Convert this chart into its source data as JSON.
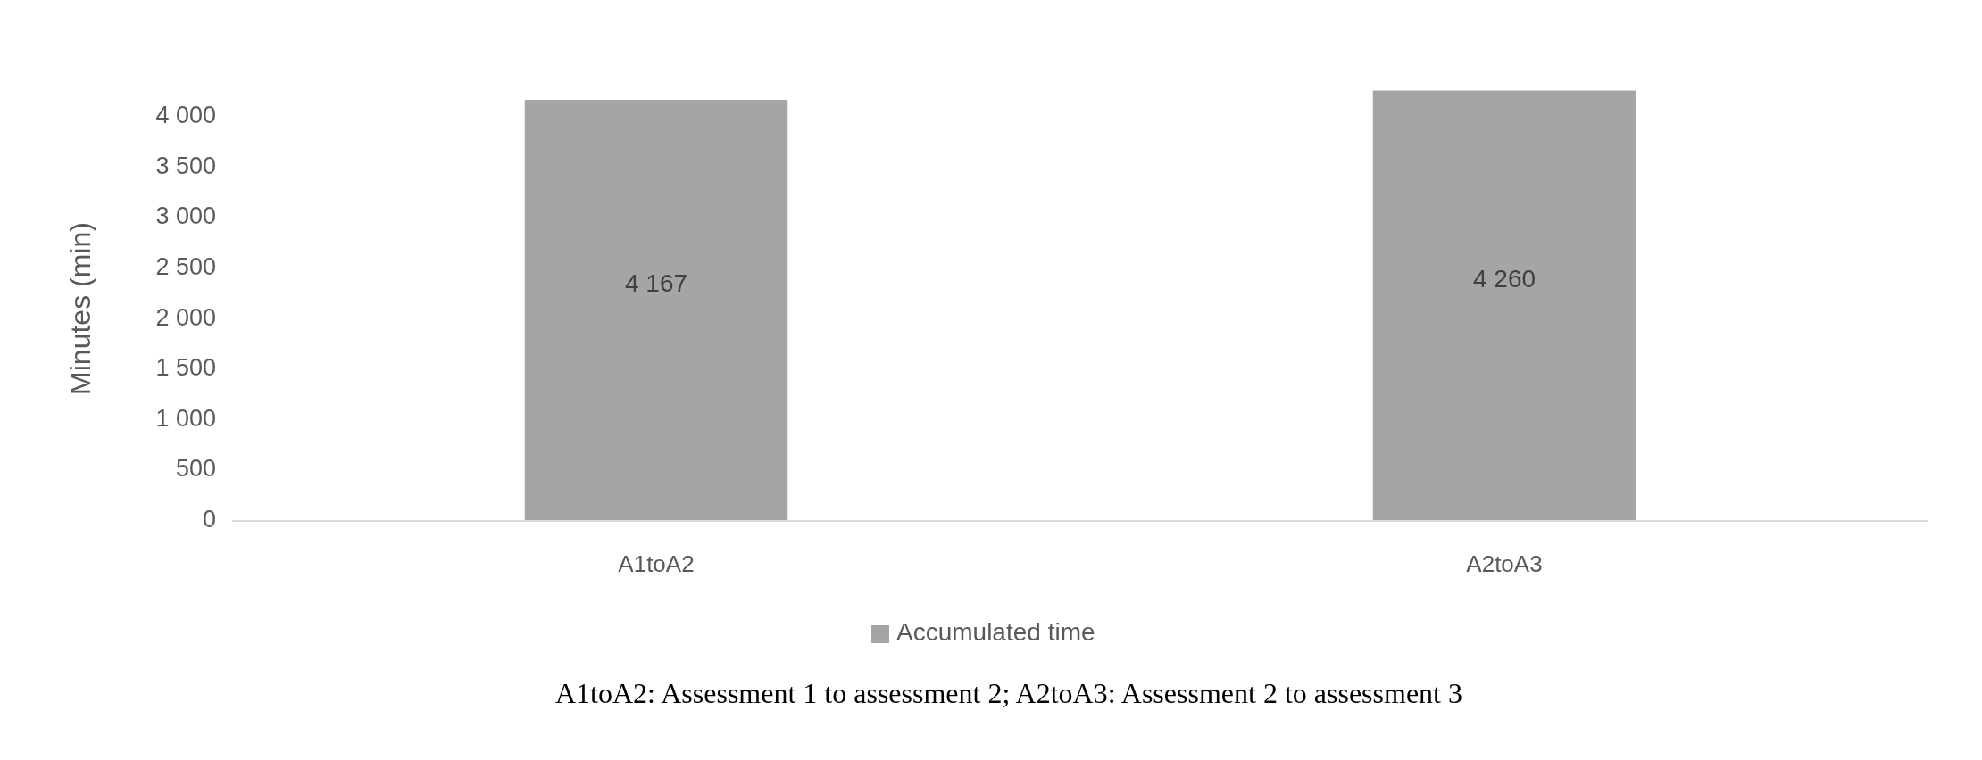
{
  "chart_data": {
    "type": "bar",
    "ylabel": "Minutes (min)",
    "categories": [
      "A1toA2",
      "A2toA3"
    ],
    "series": [
      {
        "name": "Accumulated time",
        "color": "#a5a5a5",
        "values": [
          4167,
          4260
        ]
      }
    ],
    "ylim": [
      0,
      4300
    ],
    "yticks": [
      0,
      500,
      {
        "value": 1000,
        "label": "1 000"
      },
      {
        "value": 1500,
        "label": "1 500"
      },
      {
        "value": 2000,
        "label": "2 000"
      },
      {
        "value": 2500,
        "label": "2 500"
      },
      {
        "value": 3000,
        "label": "3 000"
      },
      {
        "value": 3500,
        "label": "3 500"
      },
      {
        "value": 4000,
        "label": "4 000"
      }
    ],
    "value_labels": [
      "4 167",
      "4 260"
    ],
    "legend": "bottom",
    "grid": false,
    "annotations": [
      "A1toA2: Assessment 1 to assessment 2; A2toA3:  Assessment 2 to assessment 3"
    ]
  }
}
